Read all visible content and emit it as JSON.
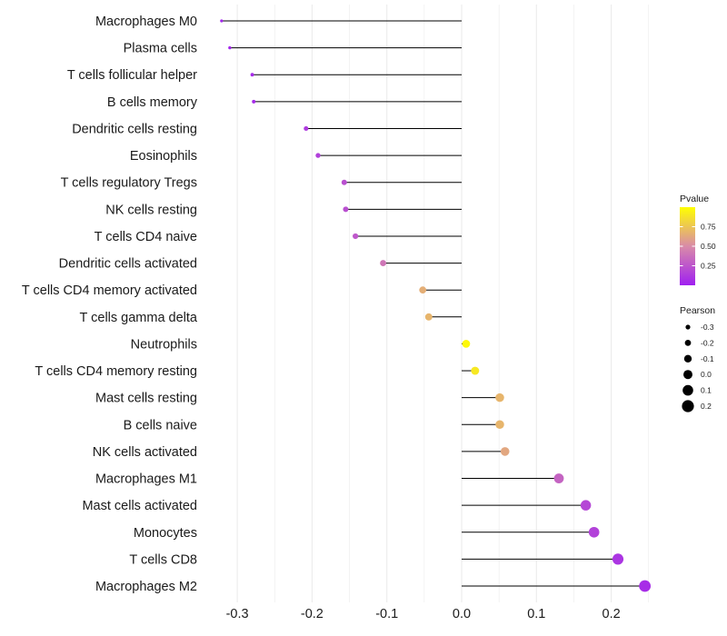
{
  "chart_data": {
    "type": "lollipop",
    "title": "",
    "xlabel": "",
    "ylabel": "",
    "xlim": [
      -0.335,
      0.255
    ],
    "x_ticks": [
      -0.3,
      -0.2,
      -0.1,
      0.0,
      0.1,
      0.2
    ],
    "x_tick_labels": [
      "-0.3",
      "-0.2",
      "-0.1",
      "0.0",
      "0.1",
      "0.2"
    ],
    "grid": true,
    "categories": [
      "Macrophages M0",
      "Plasma cells",
      "T cells follicular helper",
      "B cells memory",
      "Dendritic cells resting",
      "Eosinophils",
      "T cells regulatory  Tregs ",
      "NK cells resting",
      "T cells CD4 naive",
      "Dendritic cells activated",
      "T cells CD4 memory activated",
      "T cells gamma delta",
      "Neutrophils",
      "T cells CD4 memory resting",
      "Mast cells resting",
      "B cells naive",
      "NK cells activated",
      "Macrophages M1",
      "Mast cells activated",
      "Monocytes",
      "T cells CD8",
      "Macrophages M2"
    ],
    "pearson": [
      -0.321,
      -0.31,
      -0.28,
      -0.278,
      -0.208,
      -0.192,
      -0.157,
      -0.155,
      -0.142,
      -0.105,
      -0.052,
      -0.044,
      0.006,
      0.018,
      0.051,
      0.051,
      0.058,
      0.13,
      0.166,
      0.177,
      0.209,
      0.245
    ],
    "pvalue": [
      0.02,
      0.03,
      0.05,
      0.05,
      0.12,
      0.15,
      0.22,
      0.22,
      0.26,
      0.4,
      0.65,
      0.68,
      0.97,
      0.9,
      0.68,
      0.68,
      0.62,
      0.32,
      0.18,
      0.16,
      0.1,
      0.06
    ],
    "legend": {
      "color": {
        "title": "Pvalue",
        "range": [
          0.0,
          1.0
        ],
        "breaks": [
          0.25,
          0.5,
          0.75
        ],
        "break_labels": [
          "0.25",
          "0.50",
          "0.75"
        ],
        "low_color": "#a020f0",
        "mid_color": "#d98ba8",
        "high_color": "#ffff00"
      },
      "size": {
        "title": "Pearson",
        "values": [
          -0.3,
          -0.2,
          -0.1,
          0.0,
          0.1,
          0.2
        ],
        "labels": [
          "-0.3",
          "-0.2",
          "-0.1",
          "0.0",
          "0.1",
          "0.2"
        ]
      },
      "placement": "right"
    }
  },
  "colors": {
    "segment": "#000000",
    "grid": "#ebebeb",
    "text": "#1a1a1a"
  }
}
